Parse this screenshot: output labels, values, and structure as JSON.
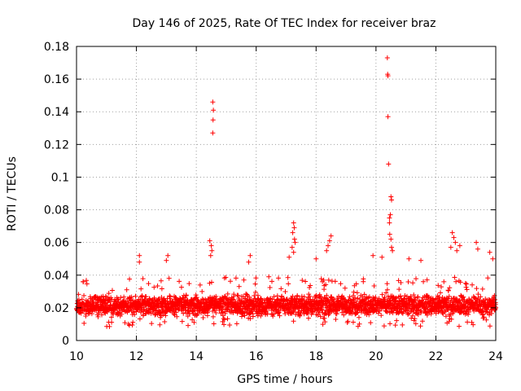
{
  "chart_data": {
    "type": "scatter",
    "title": "Day 146 of 2025, Rate Of TEC Index for receiver braz",
    "xlabel": "GPS time / hours",
    "ylabel": "ROTI / TECUs",
    "xlim": [
      10,
      24
    ],
    "ylim": [
      0,
      0.18
    ],
    "xticks": [
      10,
      12,
      14,
      16,
      18,
      20,
      22,
      24
    ],
    "xtick_labels": [
      "10",
      "12",
      "14",
      "16",
      "18",
      "20",
      "22",
      "24"
    ],
    "yticks": [
      0,
      0.02,
      0.04,
      0.06,
      0.08,
      0.1,
      0.12,
      0.14,
      0.16,
      0.18
    ],
    "ytick_labels": [
      "0",
      "0.02",
      "0.04",
      "0.06",
      "0.08",
      "0.1",
      "0.12",
      "0.14",
      "0.16",
      "0.18"
    ],
    "grid": true,
    "marker": "+",
    "color": "#ff0000",
    "series": [
      {
        "name": "ROTI",
        "baseline": {
          "x_start": 10,
          "x_end": 24,
          "typical_min": 0.008,
          "typical_max": 0.035
        },
        "points": [
          [
            14.55,
            0.146
          ],
          [
            14.57,
            0.141
          ],
          [
            14.56,
            0.135
          ],
          [
            14.55,
            0.127
          ],
          [
            14.45,
            0.061
          ],
          [
            14.5,
            0.058
          ],
          [
            14.52,
            0.055
          ],
          [
            14.48,
            0.052
          ],
          [
            20.38,
            0.173
          ],
          [
            20.39,
            0.163
          ],
          [
            20.4,
            0.162
          ],
          [
            20.4,
            0.137
          ],
          [
            20.42,
            0.108
          ],
          [
            20.5,
            0.088
          ],
          [
            20.52,
            0.086
          ],
          [
            20.48,
            0.077
          ],
          [
            20.45,
            0.075
          ],
          [
            20.45,
            0.072
          ],
          [
            20.46,
            0.065
          ],
          [
            20.5,
            0.062
          ],
          [
            20.52,
            0.057
          ],
          [
            20.55,
            0.055
          ],
          [
            17.25,
            0.072
          ],
          [
            17.27,
            0.069
          ],
          [
            17.22,
            0.066
          ],
          [
            17.28,
            0.062
          ],
          [
            17.3,
            0.06
          ],
          [
            17.2,
            0.057
          ],
          [
            17.25,
            0.054
          ],
          [
            18.5,
            0.064
          ],
          [
            18.45,
            0.061
          ],
          [
            18.4,
            0.058
          ],
          [
            18.35,
            0.055
          ],
          [
            22.55,
            0.066
          ],
          [
            22.6,
            0.063
          ],
          [
            22.65,
            0.06
          ],
          [
            22.5,
            0.057
          ],
          [
            22.7,
            0.055
          ],
          [
            22.8,
            0.058
          ],
          [
            23.35,
            0.06
          ],
          [
            23.4,
            0.056
          ],
          [
            12.1,
            0.052
          ],
          [
            12.1,
            0.048
          ],
          [
            13.05,
            0.052
          ],
          [
            13.0,
            0.049
          ],
          [
            15.8,
            0.052
          ],
          [
            15.75,
            0.048
          ],
          [
            17.1,
            0.051
          ],
          [
            18.0,
            0.05
          ],
          [
            19.9,
            0.052
          ],
          [
            20.2,
            0.051
          ],
          [
            21.1,
            0.05
          ],
          [
            21.5,
            0.049
          ],
          [
            23.8,
            0.054
          ],
          [
            23.9,
            0.05
          ]
        ]
      }
    ]
  }
}
